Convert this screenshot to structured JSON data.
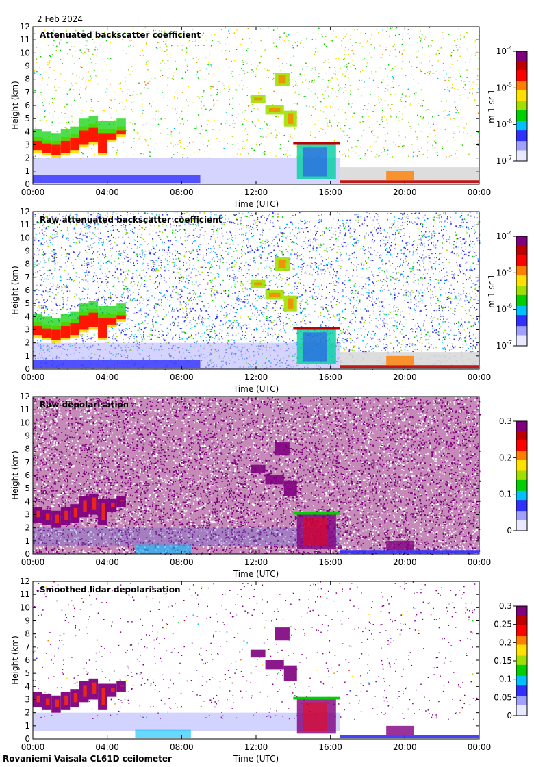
{
  "date": "2 Feb 2024",
  "footer": "Rovaniemi Vaisala CL61D ceilometer",
  "x_ticks": [
    "00:00",
    "04:00",
    "08:00",
    "12:00",
    "16:00",
    "20:00",
    "00:00"
  ],
  "x_label": "Time (UTC)",
  "y_label": "Height (km)",
  "y_ticks": [
    "0",
    "1",
    "2",
    "3",
    "4",
    "5",
    "6",
    "7",
    "8",
    "9",
    "10",
    "11",
    "12"
  ],
  "colors": {
    "background_clear": "#ffffff",
    "low_signal_gray": "#d9d9d9",
    "colormap": [
      "#f0f0ff",
      "#a0a0ff",
      "#3030ff",
      "#00c0ff",
      "#00d000",
      "#a0e000",
      "#ffe000",
      "#ff8000",
      "#ff0000",
      "#c00000",
      "#800080"
    ]
  },
  "chart_data": [
    {
      "type": "heatmap",
      "title": "Attenuated backscatter coefficient",
      "xlabel": "Time (UTC)",
      "ylabel": "Height (km)",
      "xlim": [
        "00:00",
        "00:00"
      ],
      "ylim": [
        0,
        12
      ],
      "colorbar": {
        "scale": "log",
        "ticks": [
          "10-7",
          "10-6",
          "10-5",
          "10-4"
        ],
        "label": "m-1 sr-1"
      }
    },
    {
      "type": "heatmap",
      "title": "Raw attenuated backscatter coefficient",
      "xlabel": "Time (UTC)",
      "ylabel": "Height (km)",
      "xlim": [
        "00:00",
        "00:00"
      ],
      "ylim": [
        0,
        12
      ],
      "colorbar": {
        "scale": "log",
        "ticks": [
          "10-7",
          "10-6",
          "10-5",
          "10-4"
        ],
        "label": "m-1 sr-1"
      }
    },
    {
      "type": "heatmap",
      "title": "Raw depolarisation",
      "xlabel": "Time (UTC)",
      "ylabel": "Height (km)",
      "xlim": [
        "00:00",
        "00:00"
      ],
      "ylim": [
        0,
        12
      ],
      "colorbar": {
        "scale": "linear",
        "ticks": [
          "0",
          "0.1",
          "0.2",
          "0.3"
        ],
        "label": ""
      }
    },
    {
      "type": "heatmap",
      "title": "Smoothed lidar depolarisation",
      "xlabel": "Time (UTC)",
      "ylabel": "Height (km)",
      "xlim": [
        "00:00",
        "00:00"
      ],
      "ylim": [
        0,
        12
      ],
      "colorbar": {
        "scale": "linear",
        "ticks": [
          "0",
          "0.05",
          "0.1",
          "0.15",
          "0.2",
          "0.25",
          "0.3"
        ],
        "label": ""
      }
    }
  ]
}
